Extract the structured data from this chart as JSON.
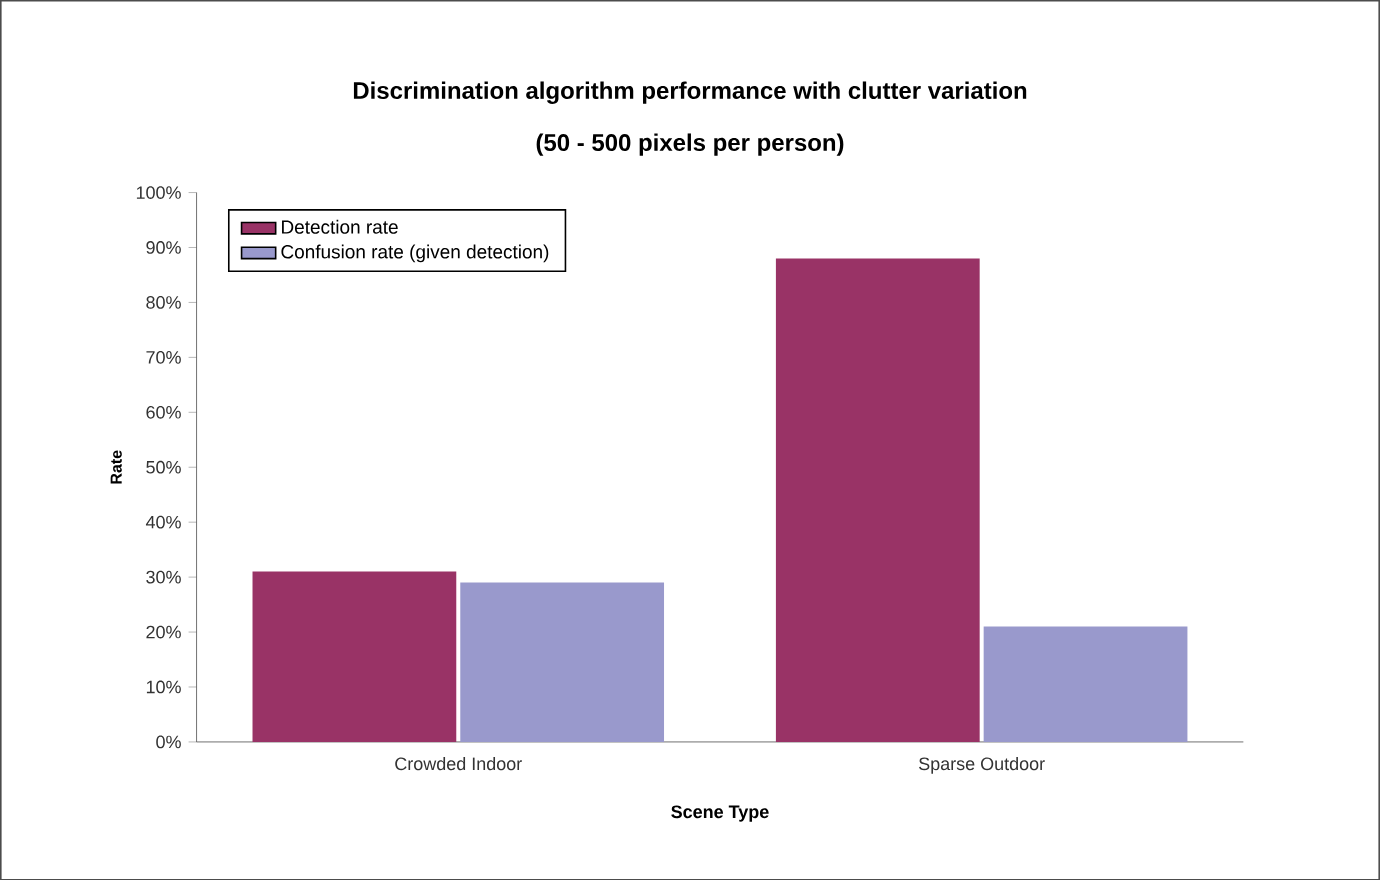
{
  "chart_data": {
    "type": "bar",
    "title": "Discrimination algorithm performance with clutter variation",
    "subtitle": "(50 - 500 pixels per person)",
    "xlabel": "Scene Type",
    "ylabel": "Rate",
    "categories": [
      "Crowded Indoor",
      "Sparse Outdoor"
    ],
    "series": [
      {
        "name": "Detection rate",
        "color": "#993366",
        "values": [
          31,
          88
        ]
      },
      {
        "name": "Confusion rate (given detection)",
        "color": "#9999cc",
        "values": [
          29,
          21
        ]
      }
    ],
    "ylim": [
      0,
      100
    ],
    "yticks": [
      {
        "value": 0,
        "label": "0%"
      },
      {
        "value": 10,
        "label": "10%"
      },
      {
        "value": 20,
        "label": "20%"
      },
      {
        "value": 30,
        "label": "30%"
      },
      {
        "value": 40,
        "label": "40%"
      },
      {
        "value": 50,
        "label": "50%"
      },
      {
        "value": 60,
        "label": "60%"
      },
      {
        "value": 70,
        "label": "70%"
      },
      {
        "value": 80,
        "label": "80%"
      },
      {
        "value": 90,
        "label": "90%"
      },
      {
        "value": 100,
        "label": "100%"
      }
    ],
    "grid": false,
    "legend": "top left"
  }
}
